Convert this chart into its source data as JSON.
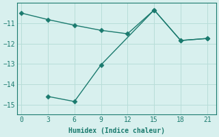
{
  "xlabel": "Humidex (Indice chaleur)",
  "line1_x": [
    0,
    3,
    6,
    9,
    12,
    15,
    18,
    21
  ],
  "line1_y": [
    -10.5,
    -10.82,
    -11.1,
    -11.35,
    -11.52,
    -10.35,
    -11.85,
    -11.75
  ],
  "line2_x": [
    3,
    6,
    9,
    15,
    18,
    21
  ],
  "line2_y": [
    -14.6,
    -14.85,
    -13.05,
    -10.35,
    -11.85,
    -11.75
  ],
  "line_color": "#1a7a6e",
  "bg_color": "#d8f0ee",
  "grid_color": "#b8ddd8",
  "xlim": [
    -0.5,
    22
  ],
  "ylim": [
    -15.5,
    -10.0
  ],
  "xticks": [
    0,
    3,
    6,
    9,
    12,
    15,
    18,
    21
  ],
  "yticks": [
    -15,
    -14,
    -13,
    -12,
    -11
  ],
  "markersize": 3.5,
  "linewidth": 1.0
}
